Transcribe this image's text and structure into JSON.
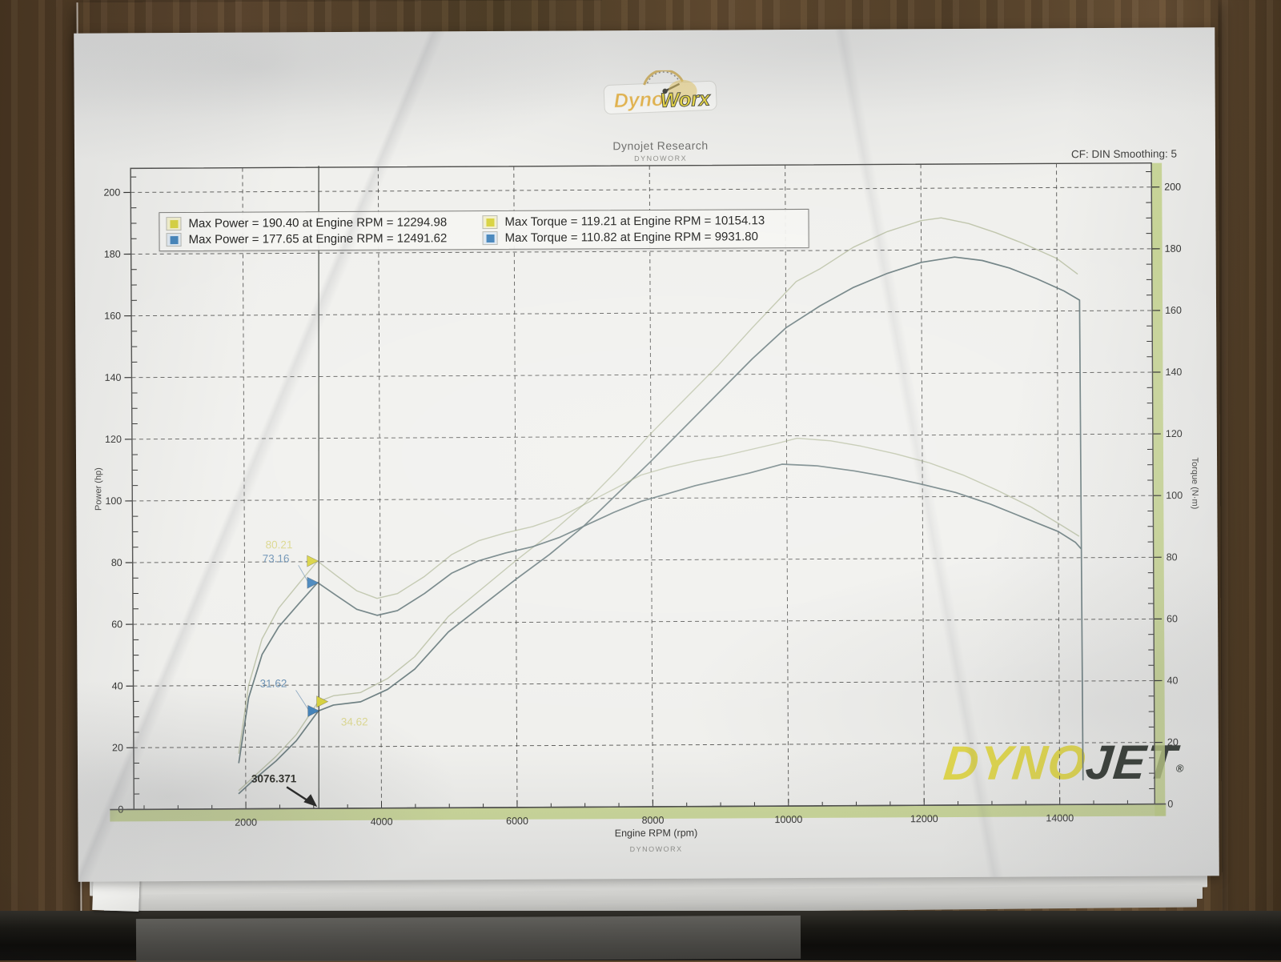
{
  "photo": {
    "wood_color": "#5a4530",
    "sleeve_color": "#e2e2df",
    "paper_color": "#f0f0ed",
    "binder_color": "#15130f"
  },
  "header": {
    "title": "Dynojet Research",
    "subtitle": "DYNOWORX",
    "smoothing": "CF: DIN Smoothing: 5"
  },
  "logos": {
    "dynoworx": {
      "part1": "Dyno",
      "part2": "Worx"
    },
    "dynojet": {
      "part1": "DYNO",
      "part2": "JET",
      "reg": "®",
      "yellow": "#e5db49",
      "dark": "#2e342d"
    }
  },
  "footer": {
    "watermark": "DYNOWORX"
  },
  "chart_data": {
    "type": "line",
    "title": "Dynojet Research",
    "xlabel": "Engine RPM (rpm)",
    "ylabel_left": "Power (hp)",
    "ylabel_right": "Torque (N·m)",
    "watermark": "DYNOWORX",
    "xlim": [
      350,
      15400
    ],
    "ylim": [
      0,
      207.8
    ],
    "x_major_ticks": [
      2000,
      4000,
      6000,
      8000,
      10000,
      12000,
      14000
    ],
    "x_minor_step": 500,
    "y_major_step": 20,
    "y_minor_step": 5,
    "grid": "dashed",
    "legend_position": "top-left",
    "style": {
      "band": "#c3d383",
      "grid": "#3f3f3d",
      "frame": "#4b4b49",
      "ink": "#2e2e2c",
      "cursor": "#3a3f3a"
    },
    "legend": [
      {
        "swatch": "#d8d23f",
        "box": "#f3f0cd",
        "text": "Max Power = 190.40 at Engine RPM = 12294.98"
      },
      {
        "swatch": "#4484bb",
        "box": "#dfe9f2",
        "text": "Max Power = 177.65 at Engine RPM = 12491.62"
      },
      {
        "swatch": "#d8d23f",
        "box": "#f3f0cd",
        "text": "Max Torque = 119.21 at Engine RPM = 10154.13"
      },
      {
        "swatch": "#4484bb",
        "box": "#dfe9f2",
        "text": "Max Torque = 110.82 at Engine RPM = 9931.80"
      }
    ],
    "series": [
      {
        "name": "Power run 1 (max 190.40 hp @ 12294.98)",
        "unit": "hp",
        "color": "#98a376",
        "width": 1.4,
        "opacity": 0.55,
        "points": [
          [
            1900,
            6
          ],
          [
            2150,
            11
          ],
          [
            2450,
            17
          ],
          [
            2750,
            24
          ],
          [
            3076,
            34.6
          ],
          [
            3300,
            36.5
          ],
          [
            3700,
            37.5
          ],
          [
            4100,
            42
          ],
          [
            4500,
            49
          ],
          [
            5000,
            62
          ],
          [
            5500,
            71
          ],
          [
            6000,
            80
          ],
          [
            6500,
            88.5
          ],
          [
            7000,
            98
          ],
          [
            7500,
            109
          ],
          [
            8000,
            121
          ],
          [
            8500,
            132
          ],
          [
            9000,
            143
          ],
          [
            9500,
            155
          ],
          [
            10154,
            170
          ],
          [
            10500,
            174
          ],
          [
            11000,
            181
          ],
          [
            11500,
            186
          ],
          [
            12000,
            189.5
          ],
          [
            12295,
            190.4
          ],
          [
            12700,
            188.5
          ],
          [
            13100,
            185.5
          ],
          [
            13500,
            182
          ],
          [
            14000,
            177
          ],
          [
            14300,
            172
          ]
        ]
      },
      {
        "name": "Power run 2 (max 177.65 hp @ 12491.62)",
        "unit": "hp",
        "color": "#66797c",
        "width": 1.7,
        "opacity": 0.95,
        "points": [
          [
            1900,
            5
          ],
          [
            2150,
            10
          ],
          [
            2450,
            15.5
          ],
          [
            2750,
            22
          ],
          [
            3076,
            31.6
          ],
          [
            3300,
            33.5
          ],
          [
            3700,
            34.5
          ],
          [
            4100,
            38.5
          ],
          [
            4500,
            45
          ],
          [
            5000,
            57
          ],
          [
            5500,
            65.5
          ],
          [
            6000,
            74
          ],
          [
            6500,
            82
          ],
          [
            7000,
            91
          ],
          [
            7500,
            101.5
          ],
          [
            8000,
            112
          ],
          [
            8500,
            123
          ],
          [
            9000,
            134
          ],
          [
            9500,
            145
          ],
          [
            10000,
            155
          ],
          [
            10500,
            162
          ],
          [
            11000,
            168
          ],
          [
            11500,
            172.5
          ],
          [
            12000,
            176
          ],
          [
            12491,
            177.65
          ],
          [
            12900,
            176.5
          ],
          [
            13300,
            174
          ],
          [
            13700,
            170.5
          ],
          [
            14100,
            166.5
          ],
          [
            14330,
            163.5
          ],
          [
            14345,
            8
          ]
        ]
      },
      {
        "name": "Torque run 1 (max 119.21 N·m @ 10154.13)",
        "unit": "N·m",
        "color": "#98a376",
        "width": 1.4,
        "opacity": 0.55,
        "points": [
          [
            1900,
            18
          ],
          [
            2050,
            40
          ],
          [
            2250,
            55
          ],
          [
            2500,
            65
          ],
          [
            2800,
            73
          ],
          [
            3076,
            80.2
          ],
          [
            3350,
            75.5
          ],
          [
            3650,
            70.5
          ],
          [
            3950,
            68
          ],
          [
            4250,
            69.5
          ],
          [
            4650,
            75
          ],
          [
            5050,
            82
          ],
          [
            5450,
            86.5
          ],
          [
            5850,
            89
          ],
          [
            6250,
            91
          ],
          [
            6650,
            94
          ],
          [
            7050,
            98.5
          ],
          [
            7450,
            103
          ],
          [
            7850,
            107.5
          ],
          [
            8250,
            110
          ],
          [
            8650,
            112
          ],
          [
            9050,
            113.5
          ],
          [
            9450,
            115.5
          ],
          [
            9850,
            117.5
          ],
          [
            10154,
            119.2
          ],
          [
            10650,
            118.3
          ],
          [
            11100,
            116.5
          ],
          [
            11600,
            114
          ],
          [
            12100,
            111
          ],
          [
            12600,
            107
          ],
          [
            13100,
            102
          ],
          [
            13600,
            96.5
          ],
          [
            14050,
            90.5
          ],
          [
            14300,
            87
          ]
        ]
      },
      {
        "name": "Torque run 2 (max 110.82 N·m @ 9931.80)",
        "unit": "N·m",
        "color": "#66797c",
        "width": 1.7,
        "opacity": 0.95,
        "points": [
          [
            1900,
            15
          ],
          [
            2050,
            36
          ],
          [
            2250,
            50
          ],
          [
            2500,
            59
          ],
          [
            2800,
            66.5
          ],
          [
            3076,
            73.2
          ],
          [
            3350,
            69
          ],
          [
            3650,
            64.5
          ],
          [
            3950,
            62.5
          ],
          [
            4250,
            64
          ],
          [
            4650,
            69.5
          ],
          [
            5050,
            76
          ],
          [
            5450,
            80
          ],
          [
            5850,
            82.5
          ],
          [
            6250,
            84.5
          ],
          [
            6650,
            87.5
          ],
          [
            7050,
            91.5
          ],
          [
            7450,
            95.5
          ],
          [
            7850,
            99
          ],
          [
            8250,
            101.5
          ],
          [
            8650,
            104
          ],
          [
            9050,
            106
          ],
          [
            9450,
            108
          ],
          [
            9931,
            110.8
          ],
          [
            10450,
            110.2
          ],
          [
            11000,
            108.5
          ],
          [
            11500,
            106.5
          ],
          [
            12000,
            104
          ],
          [
            12491,
            101.3
          ],
          [
            13000,
            97.5
          ],
          [
            13500,
            93
          ],
          [
            14000,
            88.5
          ],
          [
            14250,
            85
          ],
          [
            14330,
            83
          ]
        ]
      }
    ],
    "cursor": {
      "rpm": 3076.371,
      "label": "3076.371",
      "values": [
        {
          "label": "80.21",
          "value": 80.21,
          "color": "#d8d23f",
          "text_color": "#c9c23a",
          "text_opacity": 0.55,
          "dx": 0,
          "label_offset": [
            -48,
            -16
          ]
        },
        {
          "label": "73.16",
          "value": 73.16,
          "color": "#4484bb",
          "text_color": "#5d87ad",
          "text_opacity": 0.9,
          "dx": 0,
          "label_offset": [
            -52,
            -26
          ],
          "leader": true
        },
        {
          "label": "34.62",
          "value": 34.62,
          "color": "#d8d23f",
          "text_color": "#c9c23a",
          "text_opacity": 0.5,
          "dx": 11,
          "label_offset": [
            34,
            30
          ]
        },
        {
          "label": "31.62",
          "value": 31.62,
          "color": "#4484bb",
          "text_color": "#5d87ad",
          "text_opacity": 0.9,
          "dx": 0,
          "label_offset": [
            -56,
            -30
          ],
          "leader": true
        }
      ]
    }
  }
}
